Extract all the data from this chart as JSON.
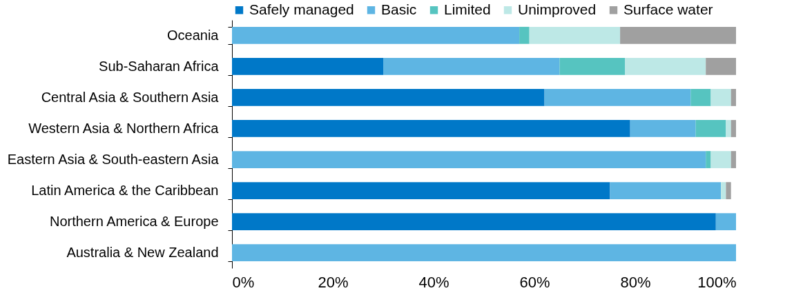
{
  "chart_data": {
    "type": "bar",
    "orientation": "horizontal",
    "stacked": true,
    "legend": "top",
    "grid": false,
    "categories": [
      "Oceania",
      "Sub-Saharan Africa",
      "Central Asia & Southern Asia",
      "Western Asia & Northern Africa",
      "Eastern Asia & South-eastern Asia",
      "Latin America & the Caribbean",
      "Northern America & Europe",
      "Australia & New Zealand"
    ],
    "series": [
      {
        "name": "Safely managed",
        "color": "#0078c8",
        "values": [
          0,
          30,
          62,
          79,
          0,
          75,
          96,
          0
        ]
      },
      {
        "name": "Basic",
        "color": "#5eb5e3",
        "values": [
          57,
          35,
          29,
          13,
          94,
          22,
          4,
          100
        ]
      },
      {
        "name": "Limited",
        "color": "#56c4c0",
        "values": [
          2,
          13,
          4,
          6,
          1,
          0,
          0,
          0
        ]
      },
      {
        "name": "Unimproved",
        "color": "#bde8e6",
        "values": [
          18,
          16,
          4,
          1,
          4,
          1,
          0,
          0
        ]
      },
      {
        "name": "Surface water",
        "color": "#a0a0a0",
        "values": [
          23,
          6,
          1,
          1,
          1,
          1,
          0,
          0
        ]
      }
    ],
    "xlim": [
      0,
      100
    ],
    "xticks": [
      {
        "value": 0,
        "label": "0%"
      },
      {
        "value": 20,
        "label": "20%"
      },
      {
        "value": 40,
        "label": "40%"
      },
      {
        "value": 60,
        "label": "60%"
      },
      {
        "value": 80,
        "label": "80%"
      },
      {
        "value": 100,
        "label": "100%"
      }
    ]
  }
}
